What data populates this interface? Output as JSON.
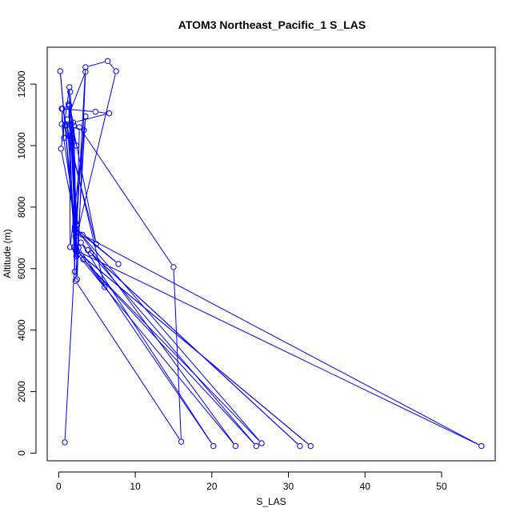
{
  "chart_data": {
    "type": "line",
    "title": "ATOM3 Northeast_Pacific_1 S_LAS",
    "xlabel": "S_LAS",
    "ylabel": "Altitude (m)",
    "xlim": [
      -1.5,
      57
    ],
    "ylim": [
      -250,
      13200
    ],
    "xticks": [
      0,
      10,
      20,
      30,
      40,
      50
    ],
    "yticks": [
      0,
      2000,
      4000,
      6000,
      8000,
      10000,
      12000
    ],
    "grid": false,
    "legend": "none",
    "series": [
      {
        "color": "#0000ff",
        "marker": "open-circle",
        "points": [
          [
            0.8,
            350
          ],
          [
            3.5,
            12550
          ],
          [
            6.4,
            12750
          ],
          [
            7.5,
            12420
          ],
          [
            2.0,
            6700
          ],
          [
            2.6,
            6680
          ],
          [
            20.2,
            230
          ],
          [
            2.9,
            6850
          ],
          [
            3.8,
            6600
          ],
          [
            31.5,
            230
          ],
          [
            4.2,
            6500
          ],
          [
            25.8,
            230
          ],
          [
            3.2,
            6300
          ],
          [
            26.5,
            320
          ],
          [
            2.1,
            7350
          ],
          [
            2.5,
            6450
          ],
          [
            23.1,
            230
          ],
          [
            2.3,
            7300
          ],
          [
            7.8,
            6150
          ],
          [
            3.1,
            7100
          ],
          [
            55.2,
            230
          ],
          [
            2.2,
            6600
          ],
          [
            32.9,
            230
          ],
          [
            2.4,
            6550
          ],
          [
            1.5,
            11750
          ],
          [
            2.4,
            7400
          ],
          [
            2.7,
            10600
          ],
          [
            15.0,
            6050
          ],
          [
            16.0,
            370
          ],
          [
            2.2,
            5600
          ],
          [
            3.5,
            10950
          ],
          [
            2.1,
            7250
          ],
          [
            0.2,
            12420
          ],
          [
            2.3,
            6400
          ],
          [
            1.1,
            10850
          ],
          [
            3.5,
            12400
          ],
          [
            2.4,
            5650
          ],
          [
            2.0,
            10650
          ],
          [
            1.4,
            11300
          ],
          [
            2.2,
            7050
          ],
          [
            1.6,
            10700
          ],
          [
            2.3,
            10000
          ],
          [
            1.3,
            11350
          ],
          [
            2.1,
            5900
          ],
          [
            1.9,
            10750
          ],
          [
            6.6,
            11050
          ],
          [
            4.8,
            11100
          ],
          [
            0.4,
            11200
          ],
          [
            0.7,
            10250
          ],
          [
            1.4,
            10300
          ],
          [
            0.5,
            11200
          ],
          [
            0.4,
            10700
          ],
          [
            2.2,
            7500
          ],
          [
            0.3,
            9900
          ],
          [
            1.4,
            11900
          ],
          [
            1.5,
            6700
          ],
          [
            3.3,
            10500
          ],
          [
            1.0,
            10650
          ],
          [
            6.0,
            5400
          ],
          [
            2.3,
            6650
          ],
          [
            1.7,
            10250
          ],
          [
            1.3,
            11300
          ],
          [
            4.9,
            6800
          ],
          [
            0.8,
            10650
          ]
        ]
      }
    ]
  }
}
